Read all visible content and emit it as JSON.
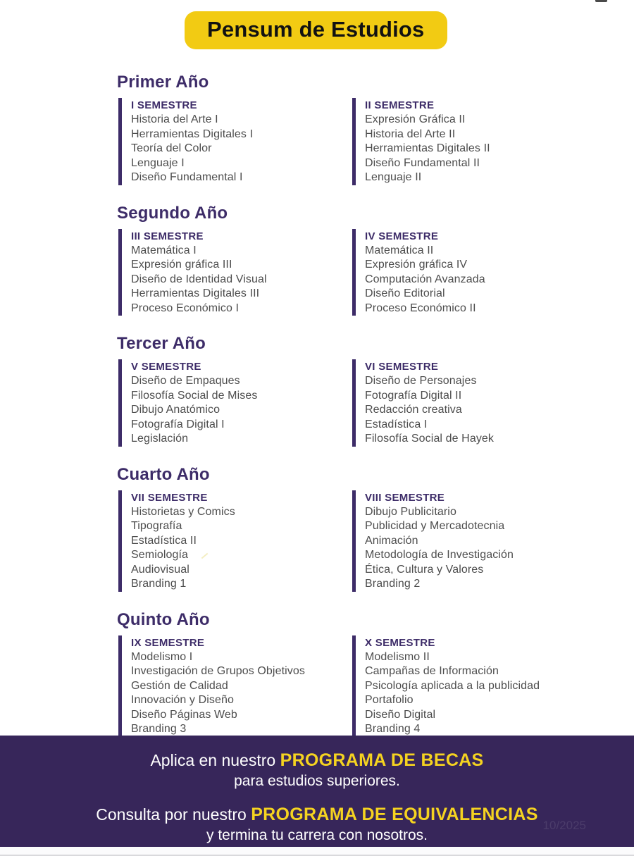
{
  "page": {
    "title": "Pensum de Estudios",
    "date_watermark": "10/2025"
  },
  "colors": {
    "accent_yellow": "#F2CB13",
    "heading_purple": "#3D2C68",
    "course_text": "#4d4d4d",
    "footer_background": "#37265A",
    "footer_highlight_yellow": "#F5D320"
  },
  "years": [
    {
      "label": "Primer Año",
      "semesters": [
        {
          "label": "I SEMESTRE",
          "courses": [
            "Historia del Arte I",
            "Herramientas Digitales I",
            "Teoría del Color",
            "Lenguaje I",
            "Diseño Fundamental I"
          ]
        },
        {
          "label": "II SEMESTRE",
          "courses": [
            "Expresión Gráfica II",
            "Historia del Arte II",
            "Herramientas Digitales II",
            "Diseño Fundamental II",
            "Lenguaje II"
          ]
        }
      ]
    },
    {
      "label": "Segundo Año",
      "semesters": [
        {
          "label": "III SEMESTRE",
          "courses": [
            "Matemática I",
            "Expresión gráfica III",
            "Diseño de Identidad Visual",
            "Herramientas Digitales III",
            "Proceso Económico I"
          ]
        },
        {
          "label": "IV SEMESTRE",
          "courses": [
            "Matemática II",
            "Expresión gráfica IV",
            "Computación Avanzada",
            "Diseño Editorial",
            "Proceso Económico II"
          ]
        }
      ]
    },
    {
      "label": "Tercer Año",
      "semesters": [
        {
          "label": "V SEMESTRE",
          "courses": [
            "Diseño de Empaques",
            "Filosofía Social de Mises",
            "Dibujo Anatómico",
            "Fotografía Digital I",
            "Legislación"
          ]
        },
        {
          "label": "VI SEMESTRE",
          "courses": [
            "Diseño de Personajes",
            "Fotografía Digital II",
            "Redacción creativa",
            "Estadística I",
            "Filosofía Social de Hayek"
          ]
        }
      ]
    },
    {
      "label": "Cuarto Año",
      "semesters": [
        {
          "label": "VII SEMESTRE",
          "courses": [
            "Historietas y Comics",
            "Tipografía",
            "Estadística II",
            "Semiología",
            "Audiovisual",
            "Branding 1"
          ]
        },
        {
          "label": "VIII SEMESTRE",
          "courses": [
            "Dibujo Publicitario",
            "Publicidad y Mercadotecnia",
            "Animación",
            "Metodología de Investigación",
            "Ética, Cultura y Valores",
            "Branding 2"
          ]
        }
      ]
    },
    {
      "label": "Quinto Año",
      "semesters": [
        {
          "label": "IX SEMESTRE",
          "courses": [
            "Modelismo I",
            "Investigación de Grupos Objetivos",
            "Gestión de Calidad",
            "Innovación y Diseño",
            "Diseño Páginas Web",
            "Branding 3"
          ]
        },
        {
          "label": "X SEMESTRE",
          "courses": [
            "Modelismo II",
            "Campañas de Información",
            "Psicología aplicada a la publicidad",
            "Portafolio",
            "Diseño Digital",
            "Branding 4"
          ]
        }
      ]
    }
  ],
  "footer": {
    "line1_prefix": "Aplica en nuestro ",
    "line1_highlight": "PROGRAMA DE BECAS",
    "line2": "para estudios superiores.",
    "line3_prefix": "Consulta por nuestro ",
    "line3_highlight": "PROGRAMA DE  EQUIVALENCIAS",
    "line4": "y termina tu carrera con nosotros."
  }
}
